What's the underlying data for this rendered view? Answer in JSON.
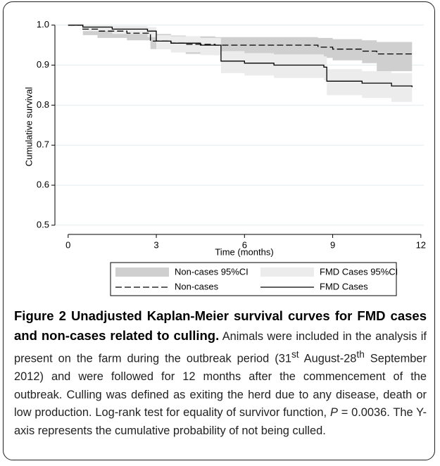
{
  "chart_data": {
    "type": "step",
    "x_label": "Time (months)",
    "y_label": "Cumulative survival",
    "xlim": [
      -0.45,
      12.1
    ],
    "ylim": [
      0.477,
      1.01
    ],
    "xticks": [
      0,
      3,
      6,
      9,
      12
    ],
    "yticks": [
      {
        "value": 1.0,
        "label": "1.0"
      },
      0.9,
      0.8,
      0.7,
      0.6,
      0.5
    ],
    "grid": true,
    "legend": "bottom",
    "bands": [
      {
        "name": "Non-cases 95%CI",
        "color": "#cfcfcf",
        "x": [
          0,
          0.5,
          1,
          2,
          2.8,
          3.5,
          4,
          5,
          8.5,
          9,
          10,
          10.5,
          11.7
        ],
        "lower": [
          1.0,
          0.975,
          0.968,
          0.962,
          0.94,
          0.932,
          0.928,
          0.925,
          0.918,
          0.912,
          0.905,
          0.885,
          0.885
        ],
        "upper": [
          1.0,
          0.997,
          0.995,
          0.993,
          0.978,
          0.974,
          0.972,
          0.97,
          0.968,
          0.965,
          0.962,
          0.958,
          0.958
        ]
      },
      {
        "name": "FMD Cases 95%CI",
        "color": "#ececec",
        "x": [
          0,
          0.5,
          1.5,
          2.7,
          3,
          3.5,
          4.5,
          5.2,
          6,
          7,
          8.7,
          8.8,
          10,
          11,
          11.7
        ],
        "lower": [
          1.0,
          0.985,
          0.978,
          0.97,
          0.94,
          0.932,
          0.925,
          0.88,
          0.874,
          0.868,
          0.862,
          0.825,
          0.818,
          0.808,
          0.802
        ],
        "upper": [
          1.0,
          1.0,
          0.998,
          0.995,
          0.975,
          0.972,
          0.968,
          0.935,
          0.93,
          0.927,
          0.922,
          0.89,
          0.885,
          0.88,
          0.878
        ]
      }
    ],
    "series": [
      {
        "name": "Non-cases",
        "color": "#000000",
        "dash": true,
        "x": [
          0,
          0.5,
          1,
          2,
          2.8,
          3.5,
          4,
          5,
          8.5,
          9,
          10,
          10.5,
          11.7
        ],
        "values": [
          1.0,
          0.99,
          0.985,
          0.98,
          0.96,
          0.955,
          0.952,
          0.95,
          0.945,
          0.94,
          0.935,
          0.928,
          0.928
        ]
      },
      {
        "name": "FMD Cases",
        "color": "#000000",
        "dash": false,
        "x": [
          0,
          0.5,
          1.5,
          2.7,
          3,
          3.5,
          4.5,
          5.2,
          6,
          7,
          8.7,
          8.8,
          10,
          11,
          11.7
        ],
        "values": [
          1.0,
          0.995,
          0.99,
          0.985,
          0.96,
          0.955,
          0.95,
          0.91,
          0.905,
          0.9,
          0.895,
          0.86,
          0.855,
          0.848,
          0.845
        ]
      }
    ]
  },
  "caption": {
    "title": "Figure 2 Unadjusted Kaplan-Meier survival curves for FMD cases and non-cases related to culling.",
    "parts": [
      " Animals were included in the analysis if present on the farm during the outbreak period (31",
      "st",
      " August-28",
      "th",
      " September 2012) and were followed for 12 months after the commencement of the outbreak. Culling was defined as exiting the herd due to any disease, death or low production. Log-rank test for equality of survivor function, ",
      "P",
      " = 0.0036. The Y-axis represents the cumulative probability of not being culled."
    ]
  }
}
